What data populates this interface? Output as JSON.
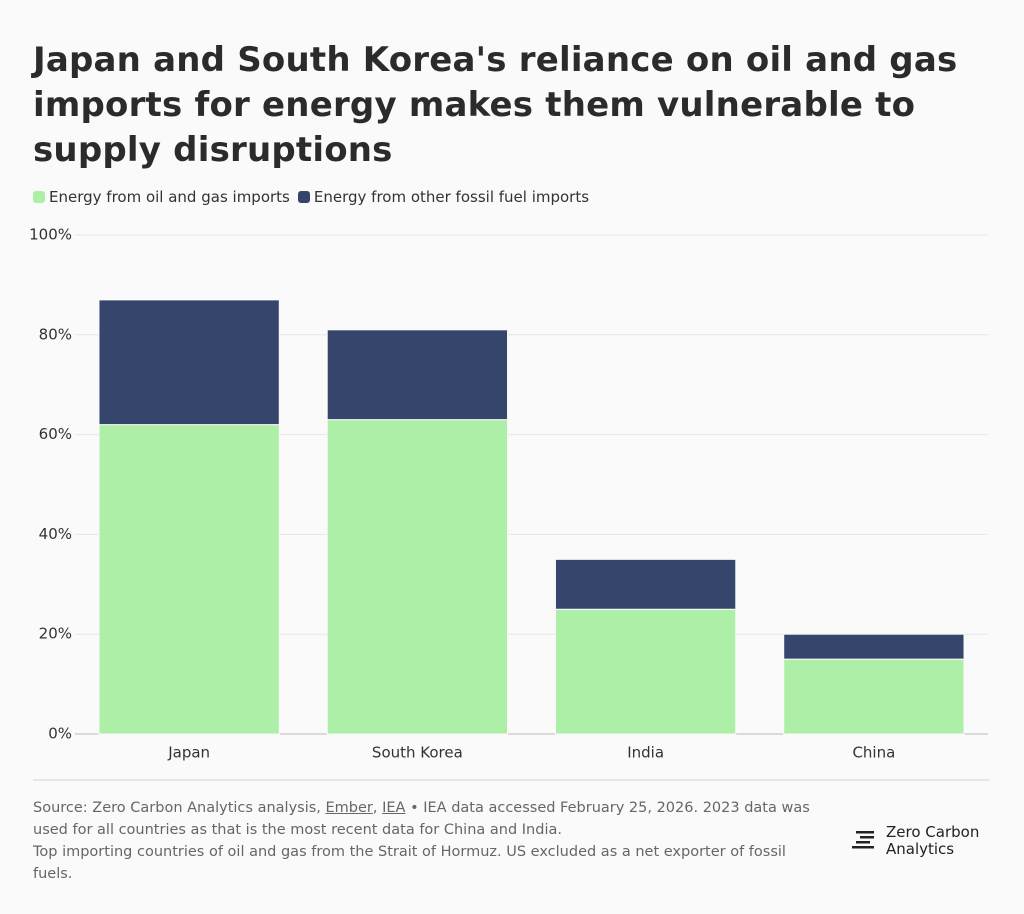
{
  "chart_data": {
    "type": "stacked-bar",
    "title": "Japan and South Korea's reliance on oil and gas imports for energy makes them vulnerable to supply disruptions",
    "categories": [
      "Japan",
      "South Korea",
      "India",
      "China"
    ],
    "series": [
      {
        "name": "Energy from oil and gas imports",
        "color": "#aeefa8",
        "values": [
          62,
          63,
          25,
          15
        ]
      },
      {
        "name": "Energy from other fossil fuel imports",
        "color": "#35456b",
        "values": [
          25,
          18,
          10,
          5
        ]
      }
    ],
    "ylim": [
      0,
      100
    ],
    "yticks": [
      {
        "value": 0,
        "label": "0%"
      },
      {
        "value": 20,
        "label": "20%"
      },
      {
        "value": 40,
        "label": "40%"
      },
      {
        "value": 60,
        "label": "60%"
      },
      {
        "value": 80,
        "label": "80%"
      },
      {
        "value": 100,
        "label": "100%"
      }
    ],
    "grid": true
  },
  "footer": {
    "source_prefix": "Source: Zero Carbon Analytics analysis,",
    "links": [
      "Ember",
      "IEA"
    ],
    "separator": ",",
    "source_suffix": "• IEA data accessed February 25, 2026. 2023 data was used for all countries as that is the most recent data for China and India.",
    "note": "Top importing countries of oil and gas from the Strait of Hormuz. US excluded as a net exporter of fossil fuels."
  },
  "logo": {
    "lines": [
      "Zero Carbon",
      "Analytics"
    ]
  }
}
